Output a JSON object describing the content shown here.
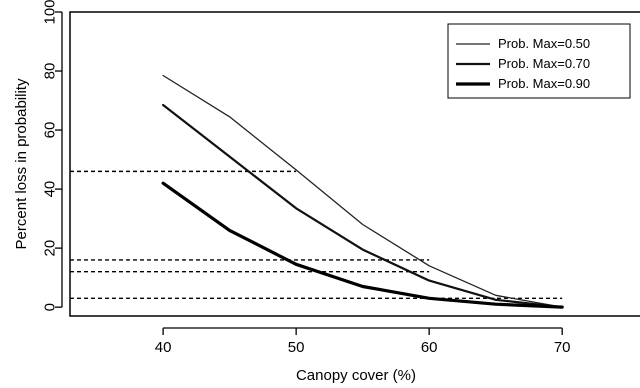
{
  "chart_data": {
    "type": "line",
    "xlabel": "Canopy cover (%)",
    "ylabel": "Percent loss in probability",
    "xlim": [
      33,
      76
    ],
    "ylim": [
      -3,
      100
    ],
    "x_ticks": [
      40,
      50,
      60,
      70
    ],
    "y_ticks": [
      0,
      20,
      40,
      60,
      80,
      100
    ],
    "x_tick_labels": [
      "40",
      "50",
      "60",
      "70"
    ],
    "y_tick_labels": [
      "0",
      "20",
      "40",
      "60",
      "80",
      "100"
    ],
    "grid": false,
    "legend_position": "top-right",
    "series": [
      {
        "name": "Prob. Max=0.50",
        "x": [
          40,
          45,
          50,
          55,
          60,
          65,
          70
        ],
        "values": [
          78.5,
          64.5,
          46.5,
          28,
          14,
          4,
          0
        ],
        "stroke": "#222222"
      },
      {
        "name": "Prob. Max=0.70",
        "x": [
          40,
          45,
          50,
          55,
          60,
          65,
          70
        ],
        "values": [
          68.5,
          51,
          33.5,
          19.5,
          9,
          2.5,
          0
        ],
        "stroke": "#111111"
      },
      {
        "name": "Prob. Max=0.90",
        "x": [
          40,
          45,
          50,
          55,
          60,
          65,
          70
        ],
        "values": [
          42,
          26,
          14.5,
          7,
          3,
          1,
          0
        ],
        "stroke": "#000000"
      }
    ],
    "reference_lines": [
      {
        "y": 46,
        "x_end": 50
      },
      {
        "y": 16,
        "x_end": 60
      },
      {
        "y": 12,
        "x_end": 60
      },
      {
        "y": 3,
        "x_end": 70
      }
    ]
  }
}
